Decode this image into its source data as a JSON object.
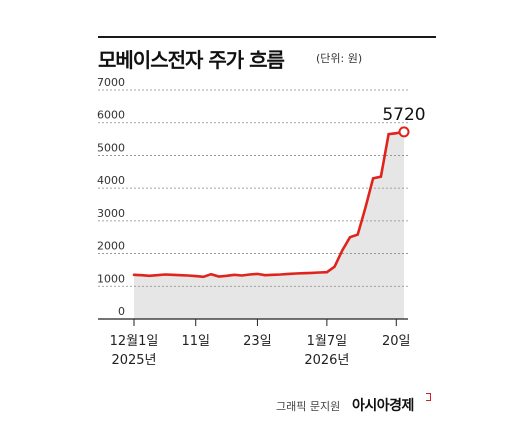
{
  "header": {
    "title": "모베이스전자 주가 흐름",
    "unit": "(단위: 원)"
  },
  "footer": {
    "credit": "그래픽 문지원",
    "brand": "아시아경제"
  },
  "colors": {
    "line": "#e0231c",
    "area": "#e6e6e6",
    "grid": "#8a8a8a",
    "text": "#222222"
  },
  "chart_data": {
    "type": "line",
    "title": "모베이스전자 주가 흐름",
    "unit": "(단위: 원)",
    "ylim": [
      0,
      7000
    ],
    "yticks": [
      "7000",
      "6000",
      "5000",
      "4000",
      "3000",
      "2000",
      "1000",
      "0"
    ],
    "x_tick_labels": [
      {
        "label": "12월1일",
        "sub": "2025년",
        "index": 0
      },
      {
        "label": "11일",
        "sub": "",
        "index": 8
      },
      {
        "label": "23일",
        "sub": "",
        "index": 16
      },
      {
        "label": "1월7일",
        "sub": "2026년",
        "index": 25
      },
      {
        "label": "20일",
        "sub": "",
        "index": 34
      }
    ],
    "grid": true,
    "area_fill": true,
    "series": [
      {
        "values": [
          1350,
          1340,
          1320,
          1340,
          1360,
          1350,
          1340,
          1330,
          1310,
          1290,
          1370,
          1300,
          1320,
          1350,
          1330,
          1360,
          1380,
          1340,
          1350,
          1360,
          1380,
          1390,
          1400,
          1410,
          1420,
          1430,
          1600,
          2100,
          2500,
          2580,
          3400,
          4300,
          4350,
          5650,
          5680,
          5720
        ],
        "last_label": "5720"
      }
    ]
  }
}
